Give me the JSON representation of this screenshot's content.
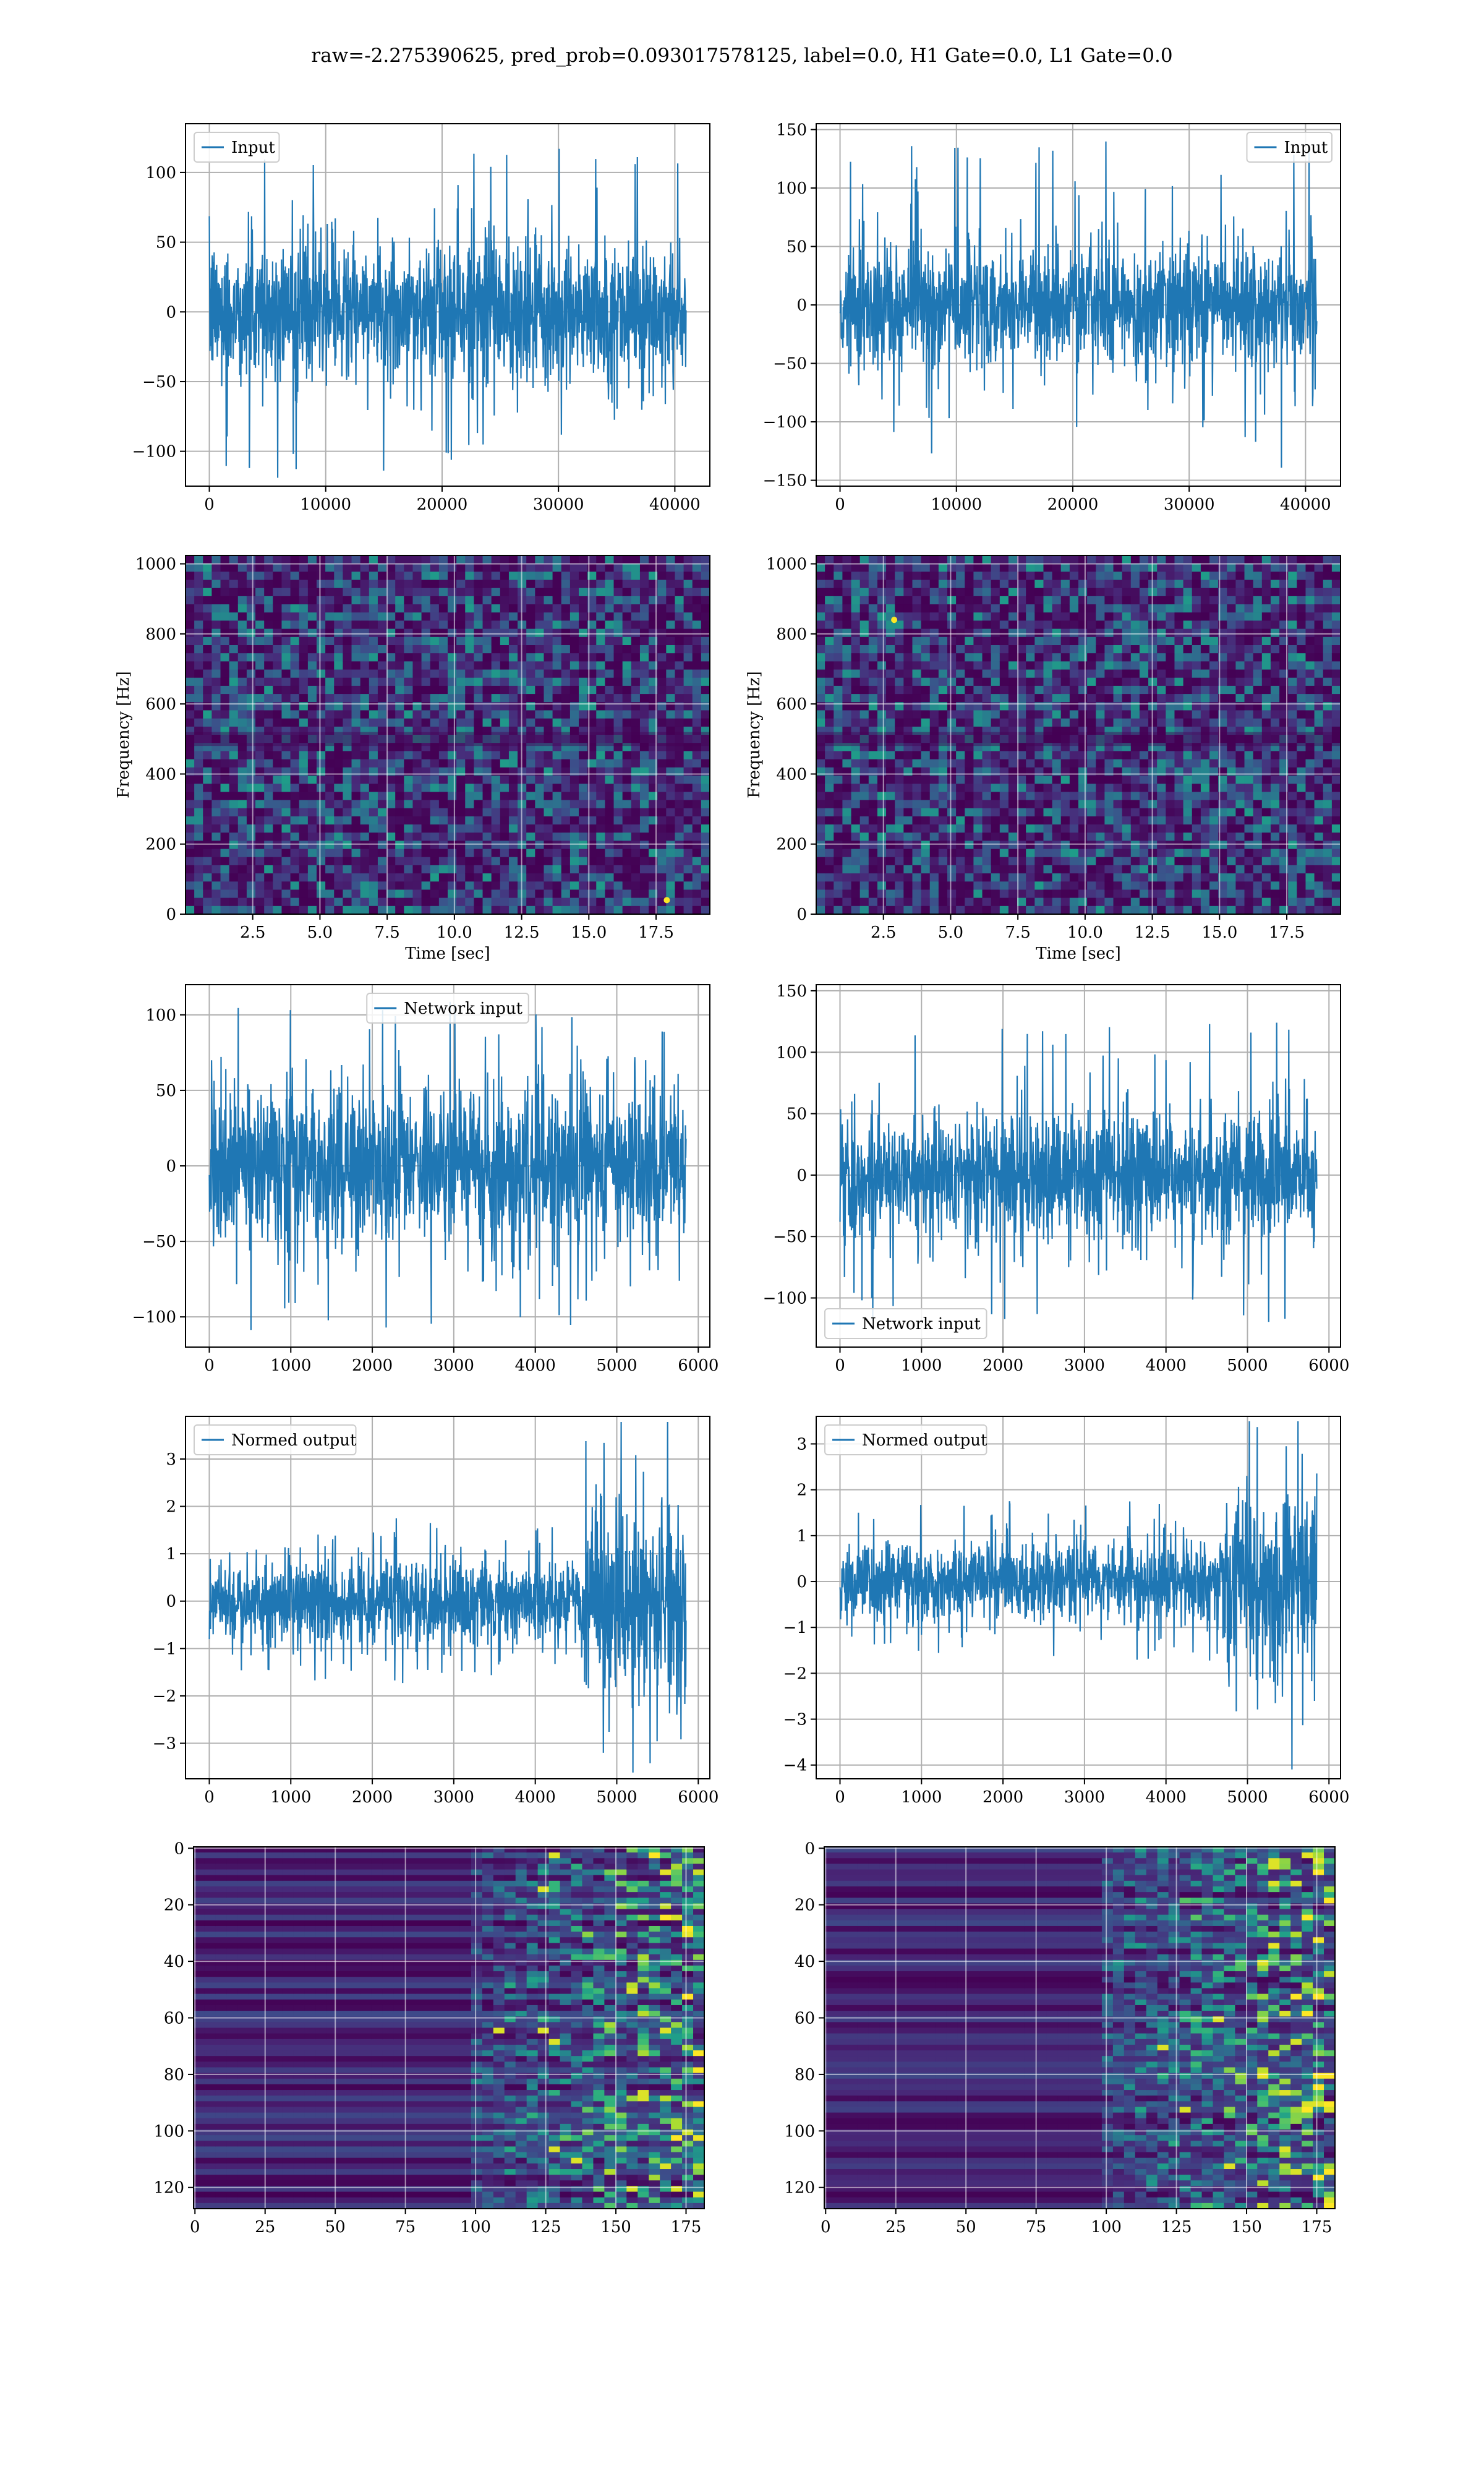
{
  "figure": {
    "suptitle": "raw=-2.275390625, pred_prob=0.093017578125, label=0.0, H1 Gate=0.0, L1 Gate=0.0"
  },
  "colors": {
    "line": "#1f77b4",
    "viridis_dark": "#440154",
    "viridis_mid": "#31688e",
    "viridis_teal": "#21918c",
    "viridis_green": "#5ec962",
    "viridis_yellow": "#fde725"
  },
  "chart_data": [
    {
      "id": "h1-input",
      "type": "line",
      "series": [
        {
          "name": "Input",
          "amplitude_typical": 45,
          "amplitude_peak": 120
        }
      ],
      "x_range": [
        0,
        40960
      ],
      "xlim": [
        -2048,
        43008
      ],
      "ylim": [
        -125,
        135
      ],
      "xticks": [
        0,
        10000,
        20000,
        30000,
        40000
      ],
      "xtick_labels": [
        "0",
        "10000",
        "20000",
        "30000",
        "40000"
      ],
      "yticks": [
        -100,
        -50,
        0,
        50,
        100
      ],
      "ytick_labels": [
        "−100",
        "−50",
        "0",
        "50",
        "100"
      ],
      "legend": "upper left",
      "grid": true,
      "xlabel": "",
      "ylabel": ""
    },
    {
      "id": "l1-input",
      "type": "line",
      "series": [
        {
          "name": "Input",
          "amplitude_typical": 45,
          "amplitude_peak": 140
        }
      ],
      "x_range": [
        0,
        40960
      ],
      "xlim": [
        -2048,
        43008
      ],
      "ylim": [
        -155,
        155
      ],
      "xticks": [
        0,
        10000,
        20000,
        30000,
        40000
      ],
      "xtick_labels": [
        "0",
        "10000",
        "20000",
        "30000",
        "40000"
      ],
      "yticks": [
        -150,
        -100,
        -50,
        0,
        50,
        100,
        150
      ],
      "ytick_labels": [
        "−150",
        "−100",
        "−50",
        "0",
        "50",
        "100",
        "150"
      ],
      "legend": "upper right",
      "grid": true,
      "xlabel": "",
      "ylabel": ""
    },
    {
      "id": "h1-spectrogram",
      "type": "heatmap",
      "colormap": "viridis",
      "xlim": [
        0,
        19.5
      ],
      "ylim": [
        0,
        1024
      ],
      "xticks": [
        2.5,
        5.0,
        7.5,
        10.0,
        12.5,
        15.0,
        17.5
      ],
      "xtick_labels": [
        "2.5",
        "5.0",
        "7.5",
        "10.0",
        "12.5",
        "15.0",
        "17.5"
      ],
      "yticks": [
        0,
        200,
        400,
        600,
        800,
        1000
      ],
      "ytick_labels": [
        "0",
        "200",
        "400",
        "600",
        "800",
        "1000"
      ],
      "xlabel": "Time [sec]",
      "ylabel": "Frequency [Hz]",
      "grid": true,
      "hot_spots": [
        [
          17.9,
          40
        ]
      ]
    },
    {
      "id": "l1-spectrogram",
      "type": "heatmap",
      "colormap": "viridis",
      "xlim": [
        0,
        19.5
      ],
      "ylim": [
        0,
        1024
      ],
      "xticks": [
        2.5,
        5.0,
        7.5,
        10.0,
        12.5,
        15.0,
        17.5
      ],
      "xtick_labels": [
        "2.5",
        "5.0",
        "7.5",
        "10.0",
        "12.5",
        "15.0",
        "17.5"
      ],
      "yticks": [
        0,
        200,
        400,
        600,
        800,
        1000
      ],
      "ytick_labels": [
        "0",
        "200",
        "400",
        "600",
        "800",
        "1000"
      ],
      "xlabel": "Time [sec]",
      "ylabel": "Frequency [Hz]",
      "grid": true,
      "hot_spots": [
        [
          2.9,
          840
        ]
      ]
    },
    {
      "id": "h1-network-input",
      "type": "line",
      "series": [
        {
          "name": "Network input",
          "amplitude_typical": 45,
          "amplitude_peak": 115
        }
      ],
      "x_range": [
        0,
        5850
      ],
      "xlim": [
        -292,
        6142
      ],
      "ylim": [
        -120,
        120
      ],
      "xticks": [
        0,
        1000,
        2000,
        3000,
        4000,
        5000,
        6000
      ],
      "xtick_labels": [
        "0",
        "1000",
        "2000",
        "3000",
        "4000",
        "5000",
        "6000"
      ],
      "yticks": [
        -100,
        -50,
        0,
        50,
        100
      ],
      "ytick_labels": [
        "−100",
        "−50",
        "0",
        "50",
        "100"
      ],
      "legend": "upper center",
      "grid": true,
      "xlabel": "",
      "ylabel": ""
    },
    {
      "id": "l1-network-input",
      "type": "line",
      "series": [
        {
          "name": "Network input",
          "amplitude_typical": 45,
          "amplitude_peak": 125
        }
      ],
      "x_range": [
        0,
        5850
      ],
      "xlim": [
        -292,
        6142
      ],
      "ylim": [
        -140,
        155
      ],
      "xticks": [
        0,
        1000,
        2000,
        3000,
        4000,
        5000,
        6000
      ],
      "xtick_labels": [
        "0",
        "1000",
        "2000",
        "3000",
        "4000",
        "5000",
        "6000"
      ],
      "yticks": [
        -100,
        -50,
        0,
        50,
        100,
        150
      ],
      "ytick_labels": [
        "−100",
        "−50",
        "0",
        "50",
        "100",
        "150"
      ],
      "legend": "lower left",
      "grid": true,
      "xlabel": "",
      "ylabel": ""
    },
    {
      "id": "h1-normed-output",
      "type": "line",
      "series": [
        {
          "name": "Normed output",
          "amplitude_typical": 0.8,
          "amplitude_late": 1.9,
          "late_start": 4600
        }
      ],
      "x_range": [
        0,
        5850
      ],
      "xlim": [
        -292,
        6142
      ],
      "ylim": [
        -3.75,
        3.9
      ],
      "xticks": [
        0,
        1000,
        2000,
        3000,
        4000,
        5000,
        6000
      ],
      "xtick_labels": [
        "0",
        "1000",
        "2000",
        "3000",
        "4000",
        "5000",
        "6000"
      ],
      "yticks": [
        -3,
        -2,
        -1,
        0,
        1,
        2,
        3
      ],
      "ytick_labels": [
        "−3",
        "−2",
        "−1",
        "0",
        "1",
        "2",
        "3"
      ],
      "legend": "upper left",
      "grid": true,
      "xlabel": "",
      "ylabel": ""
    },
    {
      "id": "l1-normed-output",
      "type": "line",
      "series": [
        {
          "name": "Normed output",
          "amplitude_typical": 0.8,
          "amplitude_late": 1.9,
          "late_start": 4700
        }
      ],
      "x_range": [
        0,
        5850
      ],
      "xlim": [
        -292,
        6142
      ],
      "ylim": [
        -4.3,
        3.6
      ],
      "xticks": [
        0,
        1000,
        2000,
        3000,
        4000,
        5000,
        6000
      ],
      "xtick_labels": [
        "0",
        "1000",
        "2000",
        "3000",
        "4000",
        "5000",
        "6000"
      ],
      "yticks": [
        -4,
        -3,
        -2,
        -1,
        0,
        1,
        2,
        3
      ],
      "ytick_labels": [
        "−4",
        "−3",
        "−2",
        "−1",
        "0",
        "1",
        "2",
        "3"
      ],
      "legend": "upper left",
      "grid": true,
      "xlabel": "",
      "ylabel": ""
    },
    {
      "id": "h1-feature-map",
      "type": "heatmap",
      "colormap": "viridis",
      "rows": 128,
      "cols": 182,
      "active_from_col": 100,
      "xlim": [
        -0.5,
        181.5
      ],
      "ylim": [
        127.5,
        -0.5
      ],
      "xticks": [
        0,
        25,
        50,
        75,
        100,
        125,
        150,
        175
      ],
      "xtick_labels": [
        "0",
        "25",
        "50",
        "75",
        "100",
        "125",
        "150",
        "175"
      ],
      "yticks": [
        0,
        20,
        40,
        60,
        80,
        100,
        120
      ],
      "ytick_labels": [
        "0",
        "20",
        "40",
        "60",
        "80",
        "100",
        "120"
      ],
      "grid": true,
      "xlabel": "",
      "ylabel": ""
    },
    {
      "id": "l1-feature-map",
      "type": "heatmap",
      "colormap": "viridis",
      "rows": 128,
      "cols": 182,
      "active_from_col": 100,
      "xlim": [
        -0.5,
        181.5
      ],
      "ylim": [
        127.5,
        -0.5
      ],
      "xticks": [
        0,
        25,
        50,
        75,
        100,
        125,
        150,
        175
      ],
      "xtick_labels": [
        "0",
        "25",
        "50",
        "75",
        "100",
        "125",
        "150",
        "175"
      ],
      "yticks": [
        0,
        20,
        40,
        60,
        80,
        100,
        120
      ],
      "ytick_labels": [
        "0",
        "20",
        "40",
        "60",
        "80",
        "100",
        "120"
      ],
      "grid": true,
      "xlabel": "",
      "ylabel": ""
    }
  ]
}
